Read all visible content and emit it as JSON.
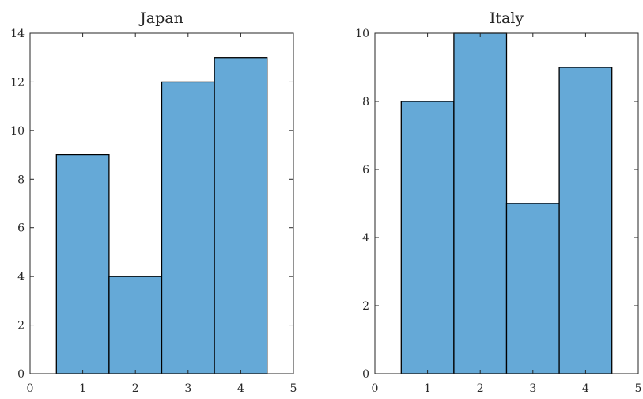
{
  "chart_data": [
    {
      "type": "bar",
      "title": "Japan",
      "x": [
        1,
        2,
        3,
        4
      ],
      "values": [
        9,
        4,
        12,
        13
      ],
      "xlim": [
        0,
        5
      ],
      "ylim": [
        0,
        14
      ],
      "xticks": [
        0,
        1,
        2,
        3,
        4,
        5
      ],
      "yticks": [
        0,
        2,
        4,
        6,
        8,
        10,
        12,
        14
      ],
      "bar_width": 1,
      "bar_color": "#65a9d7",
      "edge_color": "#000000",
      "grid": false
    },
    {
      "type": "bar",
      "title": "Italy",
      "x": [
        1,
        2,
        3,
        4
      ],
      "values": [
        8,
        10,
        5,
        9
      ],
      "xlim": [
        0,
        5
      ],
      "ylim": [
        0,
        10
      ],
      "xticks": [
        0,
        1,
        2,
        3,
        4,
        5
      ],
      "yticks": [
        0,
        2,
        4,
        6,
        8,
        10
      ],
      "bar_width": 1,
      "bar_color": "#65a9d7",
      "edge_color": "#000000",
      "grid": false
    }
  ]
}
